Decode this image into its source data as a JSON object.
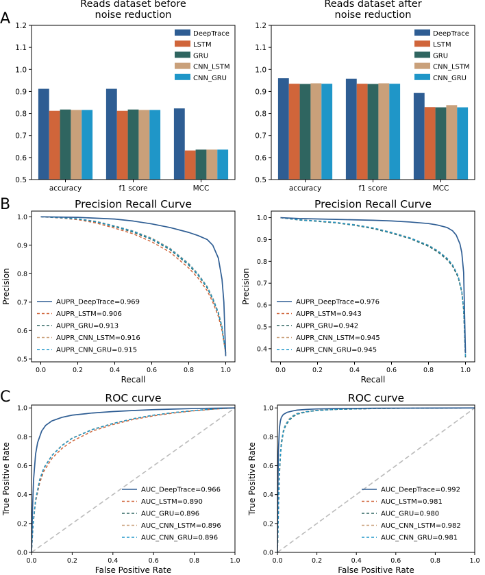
{
  "panel_labels": [
    "A",
    "B",
    "C"
  ],
  "colors": {
    "DeepTrace": "#2e5d93",
    "LSTM": "#d0653a",
    "GRU": "#2f6560",
    "CNN_LSTM": "#c9a07a",
    "CNN_GRU": "#1f96c8",
    "diagonal": "#bbbbbb"
  },
  "chart_data": [
    {
      "id": "bar_before",
      "type": "bar",
      "title_lines": [
        "Reads dataset before",
        "noise reduction"
      ],
      "categories": [
        "accuracy",
        "f1  score",
        "MCC"
      ],
      "ylim": [
        0.5,
        1.2
      ],
      "yticks": [
        "0.5",
        "0.6",
        "0.7",
        "0.8",
        "0.9",
        "1.0",
        "1.1",
        "1.2"
      ],
      "legend_position": "top-right",
      "series": [
        {
          "name": "DeepTrace",
          "values": [
            0.912,
            0.912,
            0.823
          ]
        },
        {
          "name": "LSTM",
          "values": [
            0.812,
            0.812,
            0.632
          ]
        },
        {
          "name": "GRU",
          "values": [
            0.818,
            0.818,
            0.636
          ]
        },
        {
          "name": "CNN_LSTM",
          "values": [
            0.816,
            0.816,
            0.636
          ]
        },
        {
          "name": "CNN_GRU",
          "values": [
            0.816,
            0.816,
            0.636
          ]
        }
      ]
    },
    {
      "id": "bar_after",
      "type": "bar",
      "title_lines": [
        "Reads dataset after",
        "noise reduction"
      ],
      "categories": [
        "accuracy",
        "f1  score",
        "MCC"
      ],
      "ylim": [
        0.5,
        1.2
      ],
      "yticks": [
        "0.5",
        "0.6",
        "0.7",
        "0.8",
        "0.9",
        "1.0",
        "1.1",
        "1.2"
      ],
      "legend_position": "top-right",
      "series": [
        {
          "name": "DeepTrace",
          "values": [
            0.96,
            0.958,
            0.893
          ]
        },
        {
          "name": "LSTM",
          "values": [
            0.935,
            0.935,
            0.829
          ]
        },
        {
          "name": "GRU",
          "values": [
            0.934,
            0.934,
            0.828
          ]
        },
        {
          "name": "CNN_LSTM",
          "values": [
            0.937,
            0.937,
            0.838
          ]
        },
        {
          "name": "CNN_GRU",
          "values": [
            0.935,
            0.935,
            0.828
          ]
        }
      ]
    },
    {
      "id": "pr_before",
      "type": "line",
      "title": "Precision Recall Curve",
      "xlabel": "Recall",
      "ylabel": "Precision",
      "xlim": [
        -0.05,
        1.05
      ],
      "ylim": [
        0.49,
        1.02
      ],
      "xticks": [
        "0.0",
        "0.2",
        "0.4",
        "0.6",
        "0.8",
        "1.0"
      ],
      "yticks": [
        "0.5",
        "0.6",
        "0.7",
        "0.8",
        "0.9",
        "1.0"
      ],
      "legend_position": "lower-left",
      "series": [
        {
          "name": "DeepTrace",
          "label": "AUPR_DeepTrace=0.969",
          "dash": false,
          "x": [
            0,
            0.1,
            0.2,
            0.3,
            0.4,
            0.5,
            0.6,
            0.7,
            0.8,
            0.85,
            0.9,
            0.93,
            0.96,
            0.98,
            0.99,
            1.0
          ],
          "y": [
            1.0,
            0.999,
            0.998,
            0.995,
            0.992,
            0.985,
            0.975,
            0.962,
            0.945,
            0.934,
            0.92,
            0.9,
            0.855,
            0.78,
            0.7,
            0.51
          ]
        },
        {
          "name": "LSTM",
          "label": "AUPR_LSTM=0.906",
          "dash": true,
          "x": [
            0,
            0.1,
            0.2,
            0.3,
            0.4,
            0.5,
            0.6,
            0.7,
            0.8,
            0.85,
            0.9,
            0.93,
            0.96,
            0.98,
            1.0
          ],
          "y": [
            1.0,
            0.996,
            0.99,
            0.978,
            0.96,
            0.94,
            0.912,
            0.875,
            0.82,
            0.785,
            0.74,
            0.7,
            0.65,
            0.6,
            0.52
          ]
        },
        {
          "name": "GRU",
          "label": "AUPR_GRU=0.913",
          "dash": true,
          "x": [
            0,
            0.1,
            0.2,
            0.3,
            0.4,
            0.5,
            0.6,
            0.7,
            0.8,
            0.85,
            0.9,
            0.93,
            0.96,
            0.98,
            1.0
          ],
          "y": [
            1.0,
            0.997,
            0.992,
            0.982,
            0.965,
            0.946,
            0.92,
            0.884,
            0.83,
            0.795,
            0.75,
            0.71,
            0.66,
            0.61,
            0.52
          ]
        },
        {
          "name": "CNN_LSTM",
          "label": "AUPR_CNN_LSTM=0.916",
          "dash": true,
          "x": [
            0,
            0.1,
            0.2,
            0.3,
            0.4,
            0.5,
            0.6,
            0.7,
            0.8,
            0.85,
            0.9,
            0.93,
            0.96,
            0.98,
            1.0
          ],
          "y": [
            1.0,
            0.998,
            0.993,
            0.984,
            0.968,
            0.95,
            0.925,
            0.889,
            0.836,
            0.8,
            0.755,
            0.715,
            0.665,
            0.615,
            0.52
          ]
        },
        {
          "name": "CNN_GRU",
          "label": "AUPR_CNN_GRU=0.915",
          "dash": true,
          "x": [
            0,
            0.1,
            0.2,
            0.3,
            0.4,
            0.5,
            0.6,
            0.7,
            0.8,
            0.85,
            0.9,
            0.93,
            0.96,
            0.98,
            1.0
          ],
          "y": [
            1.0,
            0.997,
            0.993,
            0.983,
            0.967,
            0.949,
            0.923,
            0.887,
            0.834,
            0.798,
            0.753,
            0.713,
            0.663,
            0.613,
            0.52
          ]
        }
      ]
    },
    {
      "id": "pr_after",
      "type": "line",
      "title": "Precision Recall Curve",
      "xlabel": "Recall",
      "ylabel": "Precision",
      "xlim": [
        -0.05,
        1.05
      ],
      "ylim": [
        0.34,
        1.03
      ],
      "xticks": [
        "0.0",
        "0.2",
        "0.4",
        "0.6",
        "0.8",
        "1.0"
      ],
      "yticks": [
        "0.4",
        "0.5",
        "0.6",
        "0.7",
        "0.8",
        "0.9",
        "1.0"
      ],
      "legend_position": "lower-left",
      "series": [
        {
          "name": "DeepTrace",
          "label": "AUPR_DeepTrace=0.976",
          "dash": false,
          "x": [
            0,
            0.1,
            0.2,
            0.3,
            0.4,
            0.5,
            0.6,
            0.7,
            0.8,
            0.85,
            0.9,
            0.93,
            0.95,
            0.97,
            0.98,
            0.99,
            1.0
          ],
          "y": [
            1.0,
            0.996,
            0.994,
            0.992,
            0.99,
            0.988,
            0.985,
            0.98,
            0.973,
            0.966,
            0.955,
            0.94,
            0.92,
            0.88,
            0.84,
            0.75,
            0.38
          ]
        },
        {
          "name": "LSTM",
          "label": "AUPR_LSTM=0.943",
          "dash": true,
          "x": [
            0,
            0.1,
            0.2,
            0.3,
            0.4,
            0.5,
            0.6,
            0.7,
            0.8,
            0.85,
            0.9,
            0.93,
            0.96,
            0.98,
            0.99,
            1.0
          ],
          "y": [
            1.0,
            0.99,
            0.984,
            0.977,
            0.966,
            0.951,
            0.93,
            0.905,
            0.87,
            0.845,
            0.81,
            0.78,
            0.73,
            0.66,
            0.58,
            0.36
          ]
        },
        {
          "name": "GRU",
          "label": "AUPR_GRU=0.942",
          "dash": true,
          "x": [
            0,
            0.1,
            0.2,
            0.3,
            0.4,
            0.5,
            0.6,
            0.7,
            0.8,
            0.85,
            0.9,
            0.93,
            0.96,
            0.98,
            0.99,
            1.0
          ],
          "y": [
            1.0,
            0.989,
            0.983,
            0.976,
            0.965,
            0.95,
            0.929,
            0.904,
            0.869,
            0.843,
            0.808,
            0.778,
            0.728,
            0.658,
            0.578,
            0.36
          ]
        },
        {
          "name": "CNN_LSTM",
          "label": "AUPR_CNN_LSTM=0.945",
          "dash": true,
          "x": [
            0,
            0.1,
            0.2,
            0.3,
            0.4,
            0.5,
            0.6,
            0.7,
            0.8,
            0.85,
            0.9,
            0.93,
            0.96,
            0.98,
            0.99,
            1.0
          ],
          "y": [
            1.0,
            0.991,
            0.985,
            0.978,
            0.968,
            0.953,
            0.933,
            0.908,
            0.874,
            0.849,
            0.815,
            0.785,
            0.735,
            0.665,
            0.585,
            0.36
          ]
        },
        {
          "name": "CNN_GRU",
          "label": "AUPR_CNN_GRU=0.945",
          "dash": true,
          "x": [
            0,
            0.1,
            0.2,
            0.3,
            0.4,
            0.5,
            0.6,
            0.7,
            0.8,
            0.85,
            0.9,
            0.93,
            0.96,
            0.98,
            0.99,
            1.0
          ],
          "y": [
            1.0,
            0.99,
            0.985,
            0.978,
            0.967,
            0.953,
            0.932,
            0.907,
            0.873,
            0.848,
            0.814,
            0.784,
            0.734,
            0.664,
            0.584,
            0.36
          ]
        }
      ]
    },
    {
      "id": "roc_before",
      "type": "line",
      "title": "ROC curve",
      "xlabel": "False Positive Rate",
      "ylabel": "True Positive Rate",
      "xlim": [
        0,
        1
      ],
      "ylim": [
        0,
        1.02
      ],
      "xticks": [
        "0.0",
        "0.2",
        "0.4",
        "0.6",
        "0.8",
        "1.0"
      ],
      "yticks": [
        "0.0",
        "0.2",
        "0.4",
        "0.6",
        "0.8",
        "1.0"
      ],
      "legend_position": "lower-right",
      "series": [
        {
          "name": "DeepTrace",
          "label": "AUC_DeepTrace=0.966",
          "dash": false,
          "x": [
            0,
            0.005,
            0.01,
            0.02,
            0.03,
            0.05,
            0.07,
            0.1,
            0.15,
            0.2,
            0.3,
            0.4,
            0.5,
            0.6,
            0.7,
            0.8,
            0.9,
            1.0
          ],
          "y": [
            0,
            0.3,
            0.5,
            0.68,
            0.76,
            0.84,
            0.88,
            0.91,
            0.935,
            0.95,
            0.965,
            0.975,
            0.982,
            0.988,
            0.992,
            0.996,
            0.998,
            1.0
          ]
        },
        {
          "name": "LSTM",
          "label": "AUC_LSTM=0.890",
          "dash": true,
          "x": [
            0,
            0.005,
            0.01,
            0.02,
            0.04,
            0.06,
            0.1,
            0.15,
            0.2,
            0.3,
            0.4,
            0.5,
            0.6,
            0.7,
            0.8,
            0.9,
            1.0
          ],
          "y": [
            0,
            0.12,
            0.22,
            0.35,
            0.48,
            0.56,
            0.65,
            0.72,
            0.77,
            0.84,
            0.885,
            0.92,
            0.945,
            0.965,
            0.98,
            0.992,
            1.0
          ]
        },
        {
          "name": "GRU",
          "label": "AUC_GRU=0.896",
          "dash": true,
          "x": [
            0,
            0.005,
            0.01,
            0.02,
            0.04,
            0.06,
            0.1,
            0.15,
            0.2,
            0.3,
            0.4,
            0.5,
            0.6,
            0.7,
            0.8,
            0.9,
            1.0
          ],
          "y": [
            0,
            0.13,
            0.23,
            0.36,
            0.5,
            0.58,
            0.67,
            0.74,
            0.79,
            0.85,
            0.892,
            0.925,
            0.95,
            0.968,
            0.982,
            0.993,
            1.0
          ]
        },
        {
          "name": "CNN_LSTM",
          "label": "AUC_CNN_LSTM=0.896",
          "dash": true,
          "x": [
            0,
            0.005,
            0.01,
            0.02,
            0.04,
            0.06,
            0.1,
            0.15,
            0.2,
            0.3,
            0.4,
            0.5,
            0.6,
            0.7,
            0.8,
            0.9,
            1.0
          ],
          "y": [
            0,
            0.13,
            0.23,
            0.365,
            0.505,
            0.585,
            0.672,
            0.742,
            0.792,
            0.852,
            0.893,
            0.926,
            0.95,
            0.968,
            0.982,
            0.993,
            1.0
          ]
        },
        {
          "name": "CNN_GRU",
          "label": "AUC_CNN_GRU=0.896",
          "dash": true,
          "x": [
            0,
            0.005,
            0.01,
            0.02,
            0.04,
            0.06,
            0.1,
            0.15,
            0.2,
            0.3,
            0.4,
            0.5,
            0.6,
            0.7,
            0.8,
            0.9,
            1.0
          ],
          "y": [
            0,
            0.13,
            0.23,
            0.362,
            0.502,
            0.582,
            0.67,
            0.74,
            0.79,
            0.851,
            0.892,
            0.925,
            0.95,
            0.968,
            0.982,
            0.993,
            1.0
          ]
        }
      ]
    },
    {
      "id": "roc_after",
      "type": "line",
      "title": "ROC curve",
      "xlabel": "False Positive Rate",
      "ylabel": "True Positive Rate",
      "xlim": [
        0,
        1
      ],
      "ylim": [
        0,
        1.02
      ],
      "xticks": [
        "0.0",
        "0.2",
        "0.4",
        "0.6",
        "0.8",
        "1.0"
      ],
      "yticks": [
        "0.0",
        "0.2",
        "0.4",
        "0.6",
        "0.8",
        "1.0"
      ],
      "legend_position": "lower-right",
      "series": [
        {
          "name": "DeepTrace",
          "label": "AUC_DeepTrace=0.992",
          "dash": false,
          "x": [
            0,
            0.002,
            0.005,
            0.01,
            0.015,
            0.02,
            0.03,
            0.05,
            0.08,
            0.1,
            0.15,
            0.2,
            0.3,
            0.5,
            0.7,
            1.0
          ],
          "y": [
            0,
            0.4,
            0.7,
            0.86,
            0.91,
            0.935,
            0.955,
            0.97,
            0.98,
            0.985,
            0.99,
            0.993,
            0.996,
            0.998,
            0.999,
            1.0
          ]
        },
        {
          "name": "LSTM",
          "label": "AUC_LSTM=0.981",
          "dash": true,
          "x": [
            0,
            0.003,
            0.006,
            0.01,
            0.015,
            0.02,
            0.03,
            0.04,
            0.06,
            0.08,
            0.1,
            0.15,
            0.2,
            0.3,
            0.5,
            0.7,
            1.0
          ],
          "y": [
            0,
            0.15,
            0.35,
            0.55,
            0.68,
            0.76,
            0.84,
            0.88,
            0.92,
            0.945,
            0.96,
            0.975,
            0.983,
            0.99,
            0.996,
            0.998,
            1.0
          ]
        },
        {
          "name": "GRU",
          "label": "AUC_GRU=0.980",
          "dash": true,
          "x": [
            0,
            0.003,
            0.006,
            0.01,
            0.015,
            0.02,
            0.03,
            0.04,
            0.06,
            0.08,
            0.1,
            0.15,
            0.2,
            0.3,
            0.5,
            0.7,
            1.0
          ],
          "y": [
            0,
            0.14,
            0.33,
            0.53,
            0.66,
            0.745,
            0.83,
            0.872,
            0.915,
            0.94,
            0.957,
            0.973,
            0.982,
            0.99,
            0.996,
            0.998,
            1.0
          ]
        },
        {
          "name": "CNN_LSTM",
          "label": "AUC_CNN_LSTM=0.982",
          "dash": true,
          "x": [
            0,
            0.003,
            0.006,
            0.01,
            0.015,
            0.02,
            0.03,
            0.04,
            0.06,
            0.08,
            0.1,
            0.15,
            0.2,
            0.3,
            0.5,
            0.7,
            1.0
          ],
          "y": [
            0,
            0.16,
            0.36,
            0.56,
            0.69,
            0.77,
            0.845,
            0.885,
            0.925,
            0.948,
            0.962,
            0.976,
            0.984,
            0.991,
            0.996,
            0.998,
            1.0
          ]
        },
        {
          "name": "CNN_GRU",
          "label": "AUC_CNN_GRU=0.981",
          "dash": true,
          "x": [
            0,
            0.003,
            0.006,
            0.01,
            0.015,
            0.02,
            0.03,
            0.04,
            0.06,
            0.08,
            0.1,
            0.15,
            0.2,
            0.3,
            0.5,
            0.7,
            1.0
          ],
          "y": [
            0,
            0.15,
            0.35,
            0.55,
            0.68,
            0.76,
            0.84,
            0.88,
            0.92,
            0.945,
            0.96,
            0.975,
            0.983,
            0.99,
            0.996,
            0.998,
            1.0
          ]
        }
      ]
    }
  ]
}
